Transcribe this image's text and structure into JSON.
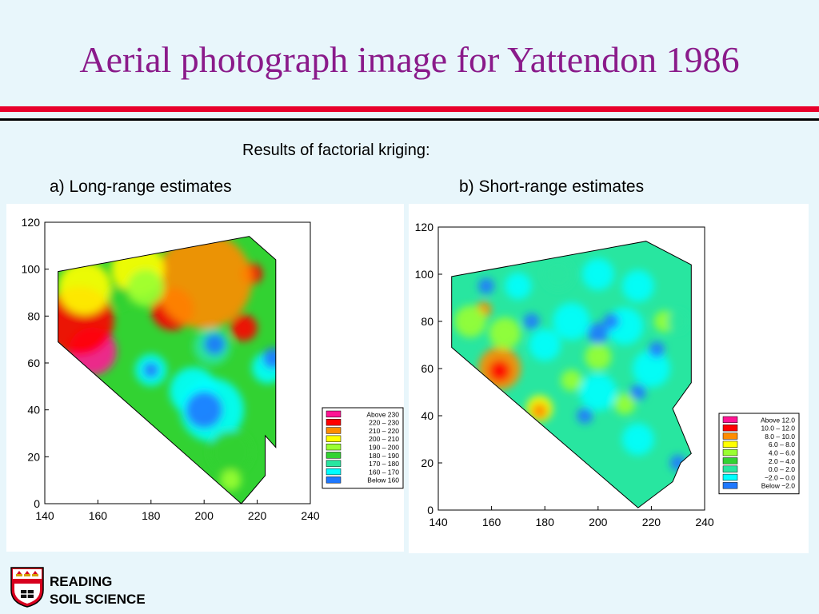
{
  "slide": {
    "title": "Aerial photograph image for Yattendon 1986",
    "subtitle": "Results of factorial kriging:"
  },
  "logo": {
    "line1": "READING",
    "line2": "SOIL SCIENCE"
  },
  "colors": {
    "title": "#8a1a8a",
    "rule_red": "#e8002a"
  },
  "chart_data": [
    {
      "type": "heatmap",
      "title": "a) Long-range estimates",
      "xlabel": "",
      "ylabel": "",
      "xlim": [
        140,
        240
      ],
      "ylim": [
        0,
        120
      ],
      "x_ticks": [
        "140",
        "160",
        "180",
        "200",
        "220",
        "240"
      ],
      "y_ticks": [
        "0",
        "20",
        "40",
        "60",
        "80",
        "100",
        "120"
      ],
      "legend_position": "bottom-right",
      "legend": [
        {
          "label": "Above    230",
          "color": "#ff1493"
        },
        {
          "label": "220  –  230",
          "color": "#ff0000"
        },
        {
          "label": "210  –  220",
          "color": "#ff8c00"
        },
        {
          "label": "200  –  210",
          "color": "#ffff00"
        },
        {
          "label": "190  –  200",
          "color": "#9aff32"
        },
        {
          "label": "180  –  190",
          "color": "#32d232"
        },
        {
          "label": "170  –  180",
          "color": "#28e6a0"
        },
        {
          "label": "160  –  170",
          "color": "#00ffff"
        },
        {
          "label": "Below    160",
          "color": "#1e78ff"
        }
      ],
      "boundary": [
        [
          145,
          99
        ],
        [
          217,
          114
        ],
        [
          227,
          104
        ],
        [
          227,
          24
        ],
        [
          223,
          29
        ],
        [
          223,
          12
        ],
        [
          214,
          0
        ],
        [
          145,
          69
        ]
      ],
      "blobs": [
        {
          "x": 158,
          "y": 65,
          "r": 9,
          "color": "#ff1493"
        },
        {
          "x": 153,
          "y": 78,
          "r": 13,
          "color": "#ff0000"
        },
        {
          "x": 188,
          "y": 83,
          "r": 8,
          "color": "#ff0000"
        },
        {
          "x": 218,
          "y": 98,
          "r": 4,
          "color": "#ff0000"
        },
        {
          "x": 215,
          "y": 75,
          "r": 5,
          "color": "#ff0000"
        },
        {
          "x": 200,
          "y": 95,
          "r": 18,
          "color": "#ff8c00"
        },
        {
          "x": 175,
          "y": 100,
          "r": 10,
          "color": "#ffff00"
        },
        {
          "x": 155,
          "y": 92,
          "r": 10,
          "color": "#ffff00"
        },
        {
          "x": 178,
          "y": 92,
          "r": 7,
          "color": "#9aff32"
        },
        {
          "x": 168,
          "y": 88,
          "r": 4,
          "color": "#32d232"
        },
        {
          "x": 203,
          "y": 67,
          "r": 7,
          "color": "#28e6a0"
        },
        {
          "x": 203,
          "y": 40,
          "r": 12,
          "color": "#00ffff"
        },
        {
          "x": 196,
          "y": 48,
          "r": 9,
          "color": "#00ffff"
        },
        {
          "x": 180,
          "y": 57,
          "r": 6,
          "color": "#00ffff"
        },
        {
          "x": 224,
          "y": 58,
          "r": 6,
          "color": "#00ffff"
        },
        {
          "x": 204,
          "y": 68,
          "r": 4,
          "color": "#1e78ff"
        },
        {
          "x": 200,
          "y": 40,
          "r": 7,
          "color": "#1e78ff"
        },
        {
          "x": 180,
          "y": 57,
          "r": 3,
          "color": "#1e78ff"
        },
        {
          "x": 226,
          "y": 62,
          "r": 4,
          "color": "#1e78ff"
        },
        {
          "x": 210,
          "y": 22,
          "r": 8,
          "color": "#32d232"
        },
        {
          "x": 210,
          "y": 10,
          "r": 4,
          "color": "#9aff32"
        }
      ]
    },
    {
      "type": "heatmap",
      "title": "b) Short-range estimates",
      "xlabel": "",
      "ylabel": "",
      "xlim": [
        140,
        240
      ],
      "ylim": [
        0,
        120
      ],
      "x_ticks": [
        "140",
        "160",
        "180",
        "200",
        "220",
        "240"
      ],
      "y_ticks": [
        "0",
        "20",
        "40",
        "60",
        "80",
        "100",
        "120"
      ],
      "legend_position": "bottom-right",
      "legend": [
        {
          "label": "Above     12.0",
          "color": "#ff1493"
        },
        {
          "label": "10.0  –  12.0",
          "color": "#ff0000"
        },
        {
          "label": "8.0  –  10.0",
          "color": "#ff8c00"
        },
        {
          "label": "6.0  –   8.0",
          "color": "#ffff00"
        },
        {
          "label": "4.0  –   6.0",
          "color": "#9aff32"
        },
        {
          "label": "2.0  –   4.0",
          "color": "#32d232"
        },
        {
          "label": "0.0  –   2.0",
          "color": "#28e6a0"
        },
        {
          "label": "−2.0  –   0.0",
          "color": "#00ffff"
        },
        {
          "label": "Below    −2.0",
          "color": "#1e78ff"
        }
      ],
      "boundary": [
        [
          145,
          99
        ],
        [
          218,
          114
        ],
        [
          235,
          104
        ],
        [
          235,
          54
        ],
        [
          228,
          43
        ],
        [
          235,
          24
        ],
        [
          231,
          20
        ],
        [
          228,
          12
        ],
        [
          215,
          1
        ],
        [
          145,
          69
        ]
      ],
      "blobs": [
        {
          "x": 163,
          "y": 60,
          "r": 8,
          "color": "#ff8c00"
        },
        {
          "x": 163,
          "y": 59,
          "r": 4,
          "color": "#ff0000"
        },
        {
          "x": 178,
          "y": 43,
          "r": 5,
          "color": "#ffff00"
        },
        {
          "x": 178,
          "y": 42,
          "r": 3,
          "color": "#ff8c00"
        },
        {
          "x": 157,
          "y": 85,
          "r": 3,
          "color": "#ff8c00"
        },
        {
          "x": 152,
          "y": 80,
          "r": 6,
          "color": "#9aff32"
        },
        {
          "x": 165,
          "y": 75,
          "r": 6,
          "color": "#9aff32"
        },
        {
          "x": 200,
          "y": 65,
          "r": 5,
          "color": "#9aff32"
        },
        {
          "x": 190,
          "y": 55,
          "r": 4,
          "color": "#9aff32"
        },
        {
          "x": 210,
          "y": 45,
          "r": 4,
          "color": "#9aff32"
        },
        {
          "x": 225,
          "y": 80,
          "r": 4,
          "color": "#9aff32"
        },
        {
          "x": 185,
          "y": 100,
          "r": 6,
          "color": "#28e6a0"
        },
        {
          "x": 200,
          "y": 100,
          "r": 6,
          "color": "#00ffff"
        },
        {
          "x": 215,
          "y": 95,
          "r": 6,
          "color": "#00ffff"
        },
        {
          "x": 190,
          "y": 80,
          "r": 7,
          "color": "#00ffff"
        },
        {
          "x": 210,
          "y": 78,
          "r": 7,
          "color": "#00ffff"
        },
        {
          "x": 200,
          "y": 50,
          "r": 7,
          "color": "#00ffff"
        },
        {
          "x": 220,
          "y": 60,
          "r": 7,
          "color": "#00ffff"
        },
        {
          "x": 215,
          "y": 30,
          "r": 6,
          "color": "#00ffff"
        },
        {
          "x": 180,
          "y": 70,
          "r": 6,
          "color": "#00ffff"
        },
        {
          "x": 170,
          "y": 95,
          "r": 5,
          "color": "#00ffff"
        },
        {
          "x": 158,
          "y": 95,
          "r": 3,
          "color": "#1e78ff"
        },
        {
          "x": 175,
          "y": 80,
          "r": 3,
          "color": "#1e78ff"
        },
        {
          "x": 200,
          "y": 75,
          "r": 4,
          "color": "#1e78ff"
        },
        {
          "x": 205,
          "y": 80,
          "r": 3,
          "color": "#1e78ff"
        },
        {
          "x": 222,
          "y": 68,
          "r": 3,
          "color": "#1e78ff"
        },
        {
          "x": 215,
          "y": 50,
          "r": 3,
          "color": "#1e78ff"
        },
        {
          "x": 230,
          "y": 20,
          "r": 3,
          "color": "#1e78ff"
        },
        {
          "x": 195,
          "y": 40,
          "r": 3,
          "color": "#1e78ff"
        },
        {
          "x": 230,
          "y": 80,
          "r": 4,
          "color": "#28e6a0"
        }
      ]
    }
  ]
}
